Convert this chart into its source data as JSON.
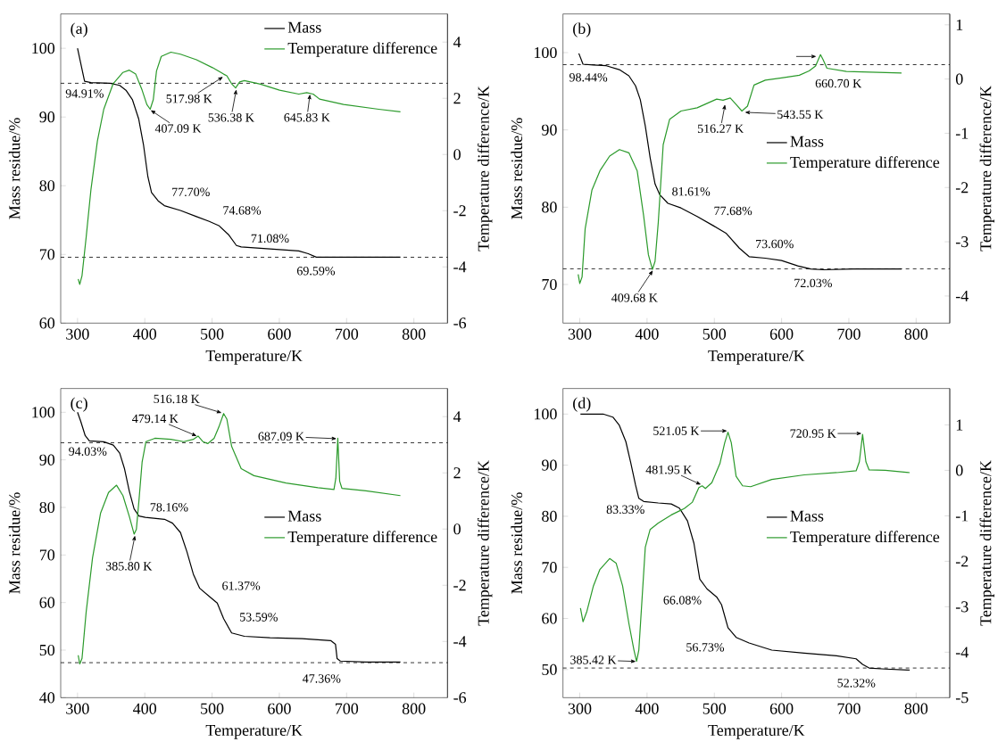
{
  "chart_data": [
    {
      "type": "line",
      "title": "(a)",
      "xlabel": "Temperature/K",
      "ylabel": "Mass residue/%",
      "y2label": "Temperature difference/K",
      "xlim": [
        275,
        850
      ],
      "xticks": [
        300,
        400,
        500,
        600,
        700,
        800
      ],
      "ylim": [
        60,
        105
      ],
      "yticks": [
        60,
        70,
        80,
        90,
        100
      ],
      "y2lim": [
        -6,
        5
      ],
      "y2ticks": [
        -6,
        -4,
        -2,
        0,
        2,
        4
      ],
      "legend": "top right",
      "series": [
        {
          "name": "Mass",
          "color": "#000000",
          "x": [
            300,
            310.5,
            320,
            348.5,
            362.7,
            372,
            381.7,
            391,
            398,
            404.6,
            410,
            419.8,
            429,
            453,
            476.8,
            495.8,
            510,
            524.3,
            536.2,
            543.3,
            586,
            628.9,
            643,
            655,
            705,
            780
          ],
          "values": [
            100,
            95.2,
            95.0,
            94.9,
            94.6,
            93.9,
            92.5,
            89.7,
            86,
            81.3,
            79.0,
            77.8,
            77.1,
            76.4,
            75.5,
            74.8,
            74.2,
            72.9,
            71.3,
            71.1,
            70.8,
            70.5,
            70.1,
            69.6,
            69.6,
            69.6
          ]
        },
        {
          "name": "Temperature difference",
          "color": "#2b9a2b",
          "axis": "y2",
          "x": [
            301,
            303.3,
            306.7,
            312.8,
            320,
            329.5,
            339,
            353,
            367.5,
            377,
            386.5,
            396,
            403,
            408,
            412.6,
            417.4,
            424.5,
            438.8,
            453,
            476.8,
            500.6,
            517.2,
            522,
            529,
            535,
            541,
            548,
            572,
            600.4,
            628.9,
            640.8,
            650.3,
            659.8,
            695.4,
            747.7,
            780
          ],
          "values": [
            -4.43,
            -4.62,
            -4.31,
            -2.95,
            -1.24,
            0.47,
            1.61,
            2.52,
            2.92,
            3.0,
            2.86,
            2.29,
            1.78,
            1.61,
            1.95,
            2.97,
            3.49,
            3.64,
            3.57,
            3.37,
            3.09,
            2.86,
            2.8,
            2.52,
            2.37,
            2.58,
            2.63,
            2.5,
            2.29,
            2.15,
            2.2,
            2.15,
            1.97,
            1.78,
            1.61,
            1.52
          ]
        }
      ],
      "ref_lines": [
        {
          "axis": "y",
          "value": 94.91,
          "line_style": "dashed"
        },
        {
          "axis": "y",
          "value": 69.59,
          "line_style": "dashed"
        }
      ],
      "annotations": [
        {
          "text": "94.91%",
          "x": 300,
          "y": 94.91
        },
        {
          "text": "407.09 K",
          "x": 407.09,
          "y": 91.1
        },
        {
          "text": "517.98 K",
          "x": 517.98,
          "y": 95.95
        },
        {
          "text": "536.38 K",
          "x": 536.38,
          "y": 94.19
        },
        {
          "text": "645.83 K",
          "x": 645.83,
          "y": 93.49
        },
        {
          "text": "77.70%",
          "x": 421,
          "y": 77.7
        },
        {
          "text": "74.68%",
          "x": 508,
          "y": 74.68
        },
        {
          "text": "71.08%",
          "x": 541,
          "y": 71.08
        },
        {
          "text": "69.59%",
          "x": 653,
          "y": 69.59
        }
      ]
    },
    {
      "type": "line",
      "title": "(b)",
      "xlabel": "Temperature/K",
      "ylabel": "Mass residue/%",
      "y2label": "Temperature difference/K",
      "xlim": [
        275,
        850
      ],
      "xticks": [
        300,
        400,
        500,
        600,
        700,
        800
      ],
      "ylim": [
        65,
        105
      ],
      "yticks": [
        70,
        80,
        90,
        100
      ],
      "y2lim": [
        -4.5,
        1.2
      ],
      "y2ticks": [
        -4,
        -3,
        -2,
        -1,
        0,
        1
      ],
      "legend": "right",
      "series": [
        {
          "name": "Mass",
          "color": "#000000",
          "x": [
            298.6,
            304.8,
            320,
            339.5,
            358.8,
            373,
            382.9,
            390,
            397.4,
            404.6,
            411.9,
            419,
            431,
            450.4,
            474.5,
            498.6,
            517.9,
            537.2,
            551.7,
            575.8,
            599.9,
            624,
            643.3,
            662.6,
            706,
            778.3
          ],
          "values": [
            99.9,
            98.5,
            98.4,
            98.3,
            97.8,
            97.0,
            95.7,
            93.9,
            90.5,
            86.4,
            83.0,
            81.6,
            80.5,
            79.9,
            78.8,
            77.6,
            76.6,
            74.7,
            73.6,
            73.4,
            73.1,
            72.4,
            72.0,
            71.9,
            72.0,
            72.0
          ]
        },
        {
          "name": "Temperature difference",
          "color": "#2b9a2b",
          "axis": "y2",
          "x": [
            297.6,
            300,
            303.4,
            308,
            318,
            330,
            344.4,
            359,
            373,
            385.3,
            394.9,
            402,
            408,
            411.9,
            416.7,
            424,
            433.6,
            450.4,
            474.5,
            503.5,
            513,
            523.7,
            532.4,
            541,
            549.3,
            559,
            575.8,
            599.9,
            626.4,
            640.9,
            650.5,
            657.8,
            661.6,
            667.4,
            696.3,
            778.3
          ],
          "values": [
            -3.6,
            -3.77,
            -3.65,
            -2.76,
            -2.05,
            -1.69,
            -1.42,
            -1.3,
            -1.36,
            -1.69,
            -2.52,
            -3.24,
            -3.51,
            -3.36,
            -2.64,
            -1.21,
            -0.74,
            -0.59,
            -0.53,
            -0.37,
            -0.39,
            -0.35,
            -0.47,
            -0.59,
            -0.5,
            -0.11,
            -0.02,
            0.02,
            0.07,
            0.15,
            0.24,
            0.45,
            0.36,
            0.2,
            0.14,
            0.11
          ]
        }
      ],
      "ref_lines": [
        {
          "axis": "y",
          "value": 98.44,
          "line_style": "dashed"
        },
        {
          "axis": "y",
          "value": 72.03,
          "line_style": "dashed"
        }
      ],
      "annotations": [
        {
          "text": "98.44%",
          "x": 300,
          "y": 98.44
        },
        {
          "text": "409.68 K",
          "x": 409.68,
          "y": 71.97
        },
        {
          "text": "516.27 K",
          "x": 516.27,
          "y": 93.45
        },
        {
          "text": "543.55 K",
          "x": 543.55,
          "y": 92.28
        },
        {
          "text": "660.70 K",
          "x": 660.7,
          "y": 99.7
        },
        {
          "text": "81.61%",
          "x": 418,
          "y": 81.61
        },
        {
          "text": "77.68%",
          "x": 497,
          "y": 77.68
        },
        {
          "text": "73.60%",
          "x": 551.7,
          "y": 73.6
        },
        {
          "text": "72.03%",
          "x": 643.3,
          "y": 72.03
        }
      ]
    },
    {
      "type": "line",
      "title": "(c)",
      "xlabel": "Temperature/K",
      "ylabel": "Mass residue/%",
      "y2label": "Temperature difference/K",
      "xlim": [
        275,
        850
      ],
      "xticks": [
        300,
        400,
        500,
        600,
        700,
        800
      ],
      "ylim": [
        40,
        105
      ],
      "yticks": [
        40,
        50,
        60,
        70,
        80,
        90,
        100
      ],
      "y2lim": [
        -6,
        5
      ],
      "y2ticks": [
        -6,
        -4,
        -2,
        0,
        2,
        4
      ],
      "legend": "right",
      "series": [
        {
          "name": "Mass",
          "color": "#000000",
          "x": [
            300,
            304.8,
            311.4,
            317.6,
            339,
            353.2,
            362.7,
            369.9,
            377,
            384.1,
            391.3,
            400.8,
            429.3,
            441.2,
            453.1,
            462.6,
            472.1,
            481.6,
            495.8,
            507.7,
            517.2,
            529.1,
            548.1,
            586.1,
            633.7,
            676.4,
            683.5,
            685.9,
            690.7,
            728.7,
            780
          ],
          "values": [
            100,
            98.1,
            95.1,
            94.0,
            93.8,
            93.1,
            91.4,
            88.1,
            83.4,
            79.7,
            78.2,
            77.9,
            77.5,
            76.7,
            74.7,
            70.7,
            66.0,
            63.0,
            61.3,
            59.9,
            56.6,
            53.6,
            52.9,
            52.6,
            52.4,
            52.0,
            51.2,
            48.2,
            47.7,
            47.5,
            47.5
          ]
        },
        {
          "name": "Temperature difference",
          "color": "#2b9a2b",
          "axis": "y2",
          "x": [
            301,
            303.3,
            306.7,
            312.8,
            322.3,
            334.2,
            346.1,
            358,
            367.5,
            377,
            384.1,
            387.5,
            391.3,
            396,
            401.7,
            415,
            438.8,
            457.8,
            472,
            479.2,
            486.3,
            493.5,
            503,
            510.1,
            517.2,
            522,
            529.1,
            543.3,
            562.3,
            609.9,
            657.4,
            681.2,
            684,
            686.9,
            689.7,
            693,
            728.7,
            780
          ],
          "values": [
            -4.49,
            -4.8,
            -4.6,
            -2.96,
            -1.03,
            0.56,
            1.3,
            1.56,
            1.19,
            0.45,
            -0.18,
            -0.01,
            1.01,
            2.38,
            3.11,
            3.23,
            3.19,
            3.11,
            3.19,
            3.31,
            3.11,
            3.04,
            3.23,
            3.63,
            4.11,
            3.91,
            2.94,
            2.15,
            1.9,
            1.64,
            1.47,
            1.41,
            1.81,
            3.23,
            1.7,
            1.45,
            1.36,
            1.19
          ]
        }
      ],
      "ref_lines": [
        {
          "axis": "y",
          "value": 93.6,
          "line_style": "dashed"
        },
        {
          "axis": "y",
          "value": 47.36,
          "line_style": "dashed"
        }
      ],
      "annotations": [
        {
          "text": "94.03%",
          "x": 300,
          "y": 94.03
        },
        {
          "text": "385.80 K",
          "x": 385.8,
          "y": 74.35
        },
        {
          "text": "479.14 K",
          "x": 479.14,
          "y": 94.91
        },
        {
          "text": "516.18 K",
          "x": 516.18,
          "y": 99.8
        },
        {
          "text": "687.09 K",
          "x": 687.09,
          "y": 94.44
        },
        {
          "text": "78.16%",
          "x": 391,
          "y": 78.16
        },
        {
          "text": "61.37%",
          "x": 495.8,
          "y": 61.37
        },
        {
          "text": "53.59%",
          "x": 529,
          "y": 53.59
        },
        {
          "text": "47.36%",
          "x": 688,
          "y": 47.36
        }
      ]
    },
    {
      "type": "line",
      "title": "(d)",
      "xlabel": "Temperature/K",
      "ylabel": "Mass residue/%",
      "y2label": "Temperature difference/K",
      "xlim": [
        275,
        850
      ],
      "xticks": [
        300,
        400,
        500,
        600,
        700,
        800
      ],
      "ylim": [
        44.5,
        105
      ],
      "yticks": [
        50,
        60,
        70,
        80,
        90,
        100
      ],
      "y2lim": [
        -5,
        1.8
      ],
      "y2ticks": [
        -5,
        -4,
        -3,
        -2,
        -1,
        0,
        1
      ],
      "legend": "right",
      "series": [
        {
          "name": "Mass",
          "color": "#000000",
          "x": [
            301,
            334.7,
            349.2,
            358.8,
            368.5,
            375.7,
            382.9,
            387.8,
            395,
            416.7,
            436,
            448,
            460.1,
            469.7,
            478.4,
            489,
            503.5,
            510.7,
            520.3,
            532.4,
            551.7,
            585.4,
            633.6,
            681.8,
            710.8,
            720.4,
            730.1,
            754.2,
            790.4
          ],
          "values": [
            100,
            100,
            99.4,
            97.8,
            94.6,
            90.5,
            86.1,
            83.5,
            82.9,
            82.6,
            82.4,
            81.6,
            79.1,
            74.7,
            67.7,
            65.8,
            64.2,
            62.7,
            58.2,
            56.3,
            55.2,
            53.8,
            53.2,
            52.7,
            52.1,
            51.0,
            50.3,
            50.1,
            49.9
          ]
        },
        {
          "name": "Temperature difference",
          "color": "#2b9a2b",
          "axis": "y2",
          "x": [
            301,
            304.8,
            310.6,
            320.3,
            329.9,
            344.4,
            354,
            363.6,
            373.3,
            380.5,
            384.4,
            387.8,
            392.6,
            397.4,
            404.6,
            416.7,
            436,
            455.3,
            467.4,
            477,
            481.9,
            486.7,
            496.3,
            508.3,
            515.5,
            520.3,
            525.2,
            532.4,
            542,
            554,
            585.4,
            633.6,
            681.8,
            710.8,
            715.6,
            720.4,
            725.3,
            730.1,
            754.2,
            790.4
          ],
          "values": [
            -3.03,
            -3.33,
            -3.1,
            -2.54,
            -2.18,
            -1.94,
            -2.04,
            -2.54,
            -3.39,
            -3.95,
            -4.2,
            -3.95,
            -2.82,
            -1.69,
            -1.3,
            -1.16,
            -0.98,
            -0.84,
            -0.7,
            -0.38,
            -0.34,
            -0.4,
            -0.27,
            0.15,
            0.61,
            0.84,
            0.61,
            -0.13,
            -0.34,
            -0.36,
            -0.2,
            -0.1,
            -0.05,
            -0.01,
            0.19,
            0.79,
            0.19,
            0.01,
            0.0,
            -0.05
          ]
        }
      ],
      "ref_lines": [
        {
          "axis": "y",
          "value": 50.3,
          "line_style": "dashed"
        }
      ],
      "annotations": [
        {
          "text": "385.42 K",
          "x": 385.42,
          "y": 51.58
        },
        {
          "text": "521.05 K",
          "x": 521.05,
          "y": 96.7
        },
        {
          "text": "720.95 K",
          "x": 720.95,
          "y": 96.2
        },
        {
          "text": "481.95 K",
          "x": 481.95,
          "y": 86.08
        },
        {
          "text": "83.33%",
          "x": 395,
          "y": 83.33
        },
        {
          "text": "66.08%",
          "x": 489,
          "y": 66.08
        },
        {
          "text": "56.73%",
          "x": 532.4,
          "y": 56.73
        },
        {
          "text": "52.32%",
          "x": 730,
          "y": 50.3
        }
      ]
    }
  ]
}
